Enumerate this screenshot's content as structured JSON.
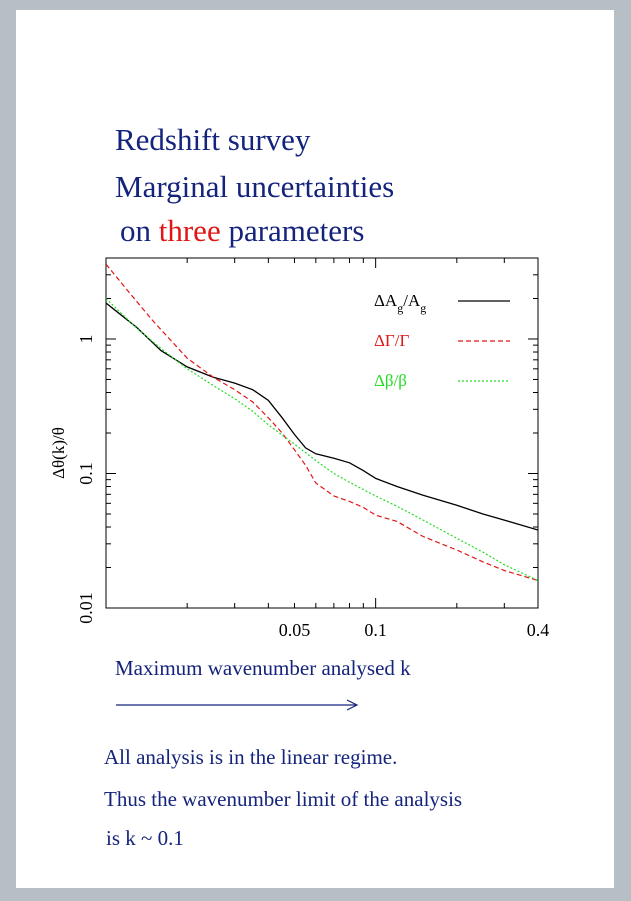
{
  "title": {
    "line1": "Redshift survey",
    "line2": "Marginal uncertainties",
    "line3_prefix": "on",
    "line3_highlight": "three",
    "line3_suffix": "parameters"
  },
  "axis_caption": "Maximum wavenumber analysed k",
  "notes": [
    "All analysis is in the linear regime.",
    "Thus the wavenumber limit of the analysis",
    "is k ~ 0.1"
  ],
  "colors": {
    "title": "#14237c",
    "highlight": "#e01616",
    "series_A": "#000000",
    "series_Gamma": "#e01616",
    "series_beta": "#22dd22"
  },
  "chart_data": {
    "type": "line",
    "xlabel": "",
    "ylabel": "Δθ(k)/θ",
    "xscale": "log",
    "yscale": "log",
    "xlim": [
      0.01,
      0.4
    ],
    "ylim": [
      0.01,
      4
    ],
    "xticks": [
      {
        "value": 0.05,
        "label": "0.05"
      },
      {
        "value": 0.1,
        "label": "0.1"
      },
      {
        "value": 0.4,
        "label": "0.4"
      }
    ],
    "yticks": [
      {
        "value": 0.01,
        "label": "0.01"
      },
      {
        "value": 0.1,
        "label": "0.1"
      },
      {
        "value": 1,
        "label": "1"
      }
    ],
    "legend_position": "top-right",
    "series": [
      {
        "name": "ΔA_g/A_g",
        "legend": {
          "base": "ΔA",
          "sub": "g",
          "mid": "/A",
          "sub2": "g"
        },
        "style": "solid",
        "color": "#000000",
        "points": [
          [
            0.01,
            1.85
          ],
          [
            0.013,
            1.22
          ],
          [
            0.016,
            0.82
          ],
          [
            0.02,
            0.62
          ],
          [
            0.025,
            0.52
          ],
          [
            0.03,
            0.47
          ],
          [
            0.035,
            0.42
          ],
          [
            0.04,
            0.35
          ],
          [
            0.045,
            0.26
          ],
          [
            0.05,
            0.195
          ],
          [
            0.055,
            0.155
          ],
          [
            0.06,
            0.14
          ],
          [
            0.07,
            0.13
          ],
          [
            0.08,
            0.12
          ],
          [
            0.09,
            0.105
          ],
          [
            0.1,
            0.092
          ],
          [
            0.12,
            0.08
          ],
          [
            0.15,
            0.069
          ],
          [
            0.2,
            0.058
          ],
          [
            0.25,
            0.05
          ],
          [
            0.3,
            0.045
          ],
          [
            0.4,
            0.038
          ]
        ]
      },
      {
        "name": "ΔΓ/Γ",
        "legend": {
          "base": "ΔΓ/Γ",
          "sub": "",
          "mid": "",
          "sub2": ""
        },
        "style": "dashed",
        "color": "#e01616",
        "points": [
          [
            0.01,
            3.6
          ],
          [
            0.012,
            2.3
          ],
          [
            0.015,
            1.35
          ],
          [
            0.02,
            0.72
          ],
          [
            0.025,
            0.52
          ],
          [
            0.03,
            0.42
          ],
          [
            0.035,
            0.34
          ],
          [
            0.04,
            0.26
          ],
          [
            0.045,
            0.2
          ],
          [
            0.05,
            0.15
          ],
          [
            0.055,
            0.115
          ],
          [
            0.06,
            0.085
          ],
          [
            0.07,
            0.068
          ],
          [
            0.08,
            0.062
          ],
          [
            0.09,
            0.056
          ],
          [
            0.1,
            0.049
          ],
          [
            0.12,
            0.044
          ],
          [
            0.15,
            0.034
          ],
          [
            0.2,
            0.027
          ],
          [
            0.25,
            0.022
          ],
          [
            0.3,
            0.019
          ],
          [
            0.4,
            0.016
          ]
        ]
      },
      {
        "name": "Δβ/β",
        "legend": {
          "base": "Δβ/β",
          "sub": "",
          "mid": "",
          "sub2": ""
        },
        "style": "dotted",
        "color": "#22dd22",
        "points": [
          [
            0.01,
            2.0
          ],
          [
            0.013,
            1.2
          ],
          [
            0.016,
            0.85
          ],
          [
            0.02,
            0.6
          ],
          [
            0.025,
            0.45
          ],
          [
            0.03,
            0.36
          ],
          [
            0.035,
            0.29
          ],
          [
            0.04,
            0.23
          ],
          [
            0.05,
            0.165
          ],
          [
            0.06,
            0.125
          ],
          [
            0.07,
            0.1
          ],
          [
            0.08,
            0.086
          ],
          [
            0.09,
            0.076
          ],
          [
            0.1,
            0.068
          ],
          [
            0.12,
            0.057
          ],
          [
            0.15,
            0.045
          ],
          [
            0.2,
            0.033
          ],
          [
            0.25,
            0.026
          ],
          [
            0.3,
            0.021
          ],
          [
            0.4,
            0.016
          ]
        ]
      }
    ]
  }
}
